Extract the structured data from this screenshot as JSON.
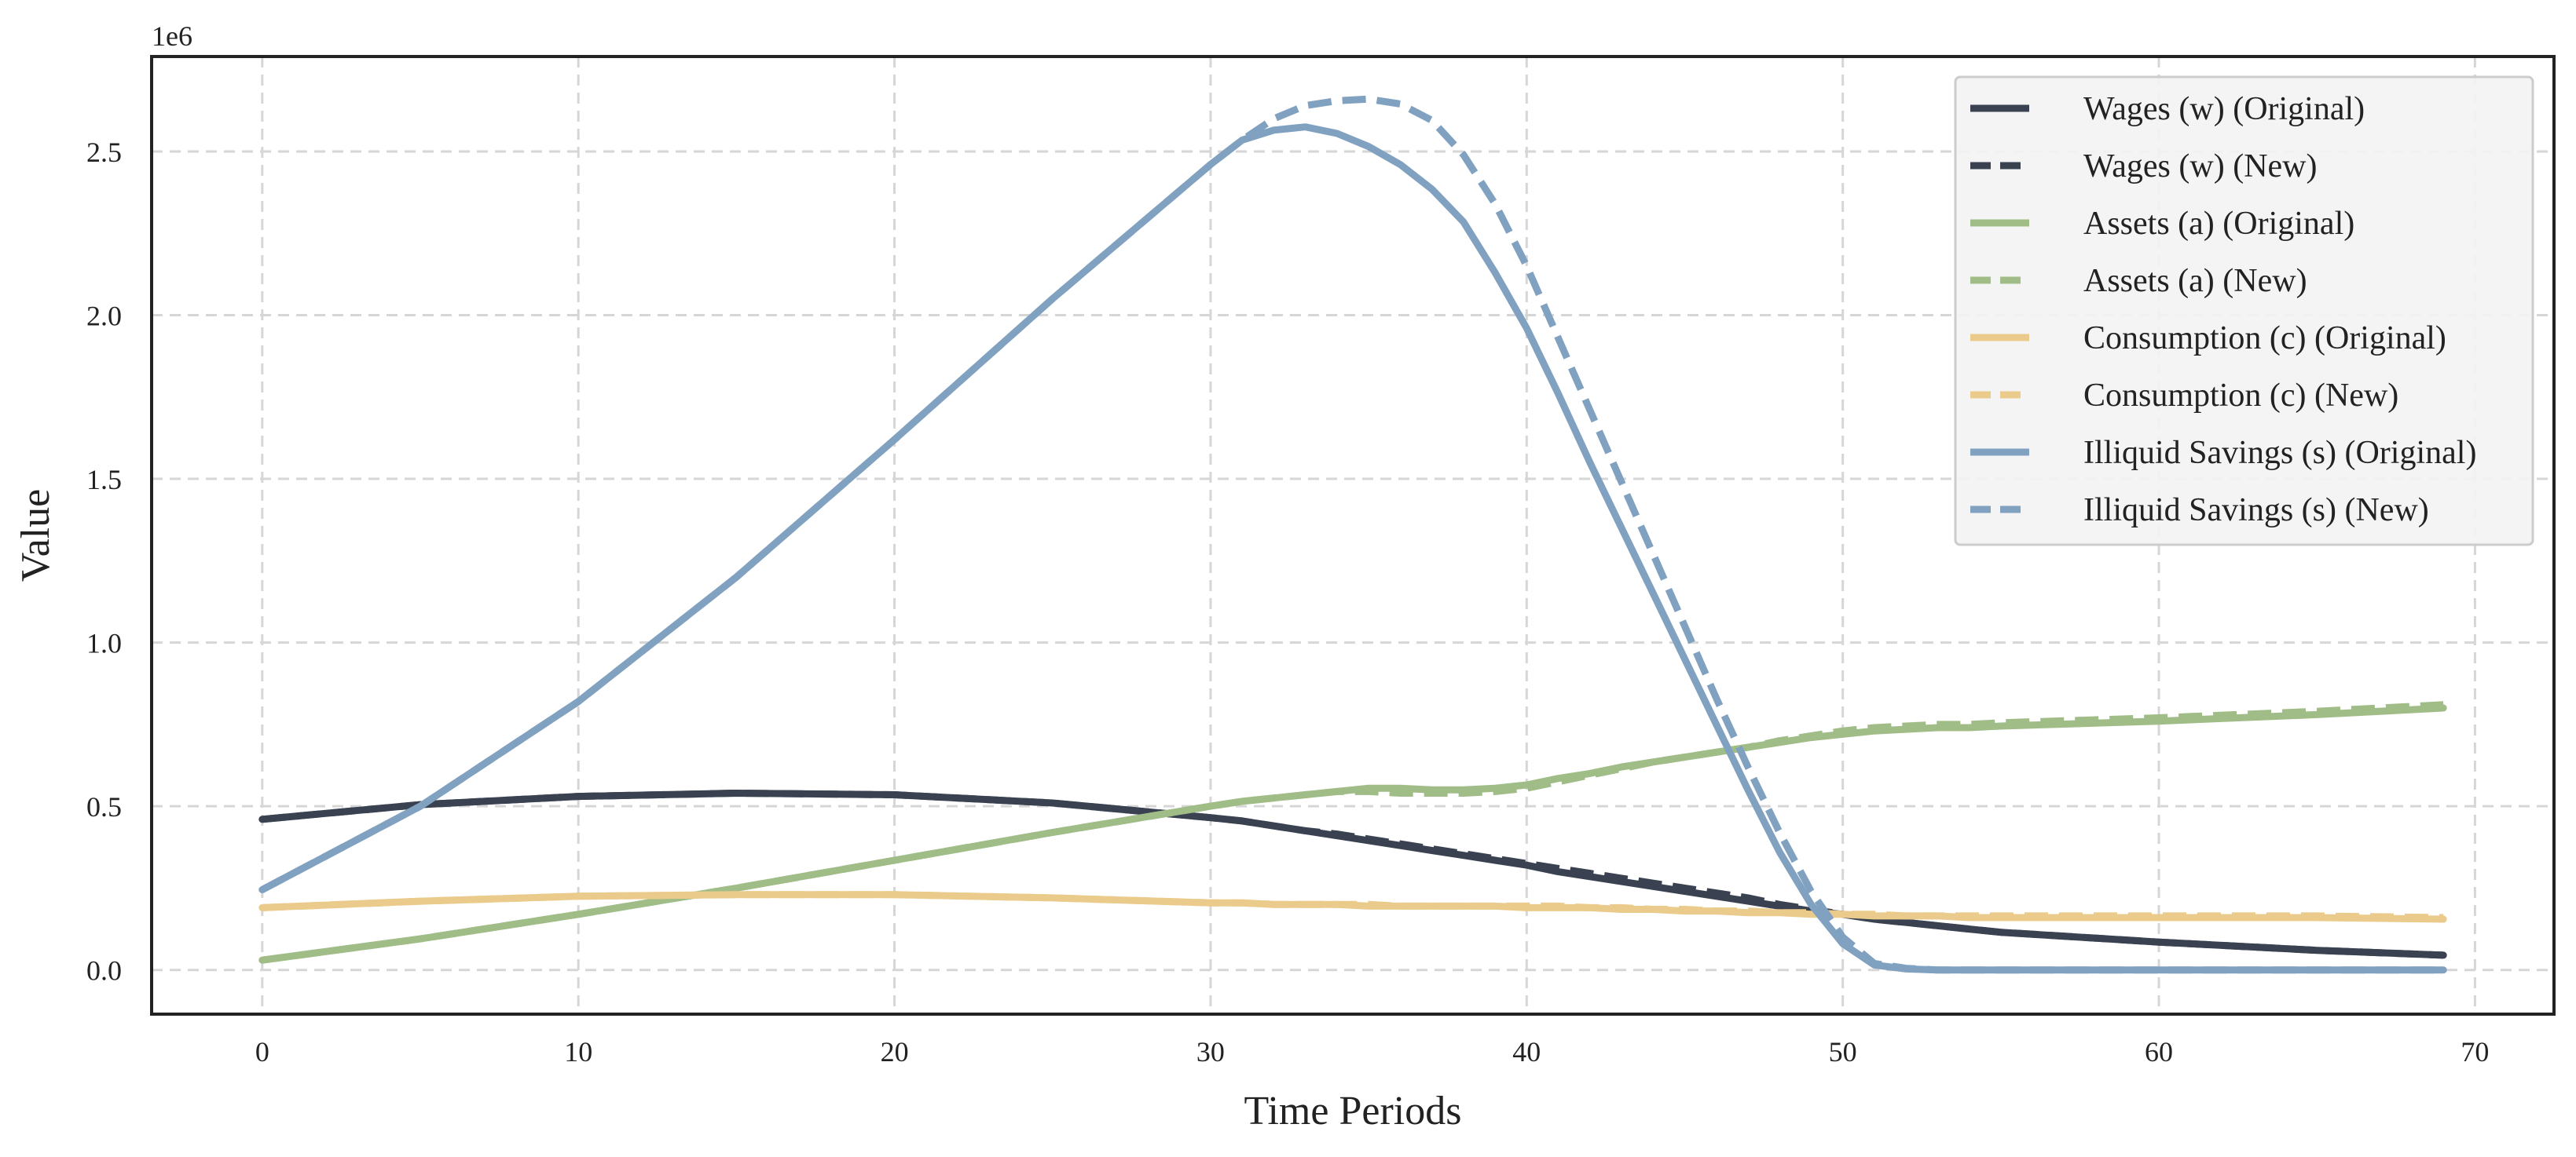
{
  "chart_data": {
    "type": "line",
    "xlabel": "Time Periods",
    "ylabel": "Value",
    "y_offset_label": "1e6",
    "xlim": [
      -3.5,
      72.5
    ],
    "ylim": [
      -0.135,
      2.79
    ],
    "xticks": [
      0,
      10,
      20,
      30,
      40,
      50,
      60,
      70
    ],
    "xtick_labels": [
      "0",
      "10",
      "20",
      "30",
      "40",
      "50",
      "60",
      "70"
    ],
    "yticks": [
      0.0,
      0.5,
      1.0,
      1.5,
      2.0,
      2.5
    ],
    "ytick_labels": [
      "0.0",
      "0.5",
      "1.0",
      "1.5",
      "2.0",
      "2.5"
    ],
    "grid": true,
    "legend_position": "top-right",
    "x": [
      0,
      5,
      10,
      15,
      20,
      25,
      30,
      31,
      32,
      33,
      34,
      35,
      36,
      37,
      38,
      39,
      40,
      41,
      42,
      43,
      44,
      45,
      46,
      47,
      48,
      49,
      50,
      51,
      52,
      53,
      54,
      55,
      60,
      65,
      69
    ],
    "series": [
      {
        "name": "Wages (w) (Original)",
        "color": "#3a4252",
        "style": "solid",
        "values": [
          0.46,
          0.505,
          0.53,
          0.54,
          0.535,
          0.51,
          0.465,
          0.455,
          0.44,
          0.425,
          0.41,
          0.395,
          0.38,
          0.365,
          0.35,
          0.335,
          0.32,
          0.3,
          0.285,
          0.27,
          0.255,
          0.24,
          0.225,
          0.21,
          0.195,
          0.18,
          0.17,
          0.155,
          0.145,
          0.135,
          0.125,
          0.115,
          0.085,
          0.06,
          0.045
        ]
      },
      {
        "name": "Wages (w) (New)",
        "color": "#3a4252",
        "style": "dashed",
        "values": [
          0.46,
          0.505,
          0.53,
          0.54,
          0.535,
          0.51,
          0.465,
          0.455,
          0.44,
          0.425,
          0.415,
          0.4,
          0.385,
          0.37,
          0.355,
          0.34,
          0.325,
          0.31,
          0.295,
          0.28,
          0.265,
          0.25,
          0.235,
          0.22,
          0.2,
          0.185,
          0.17,
          0.155,
          0.145,
          0.135,
          0.125,
          0.115,
          0.085,
          0.06,
          0.045
        ]
      },
      {
        "name": "Assets (a) (Original)",
        "color": "#a0bd88",
        "style": "solid",
        "values": [
          0.03,
          0.095,
          0.17,
          0.25,
          0.335,
          0.42,
          0.5,
          0.515,
          0.525,
          0.535,
          0.545,
          0.555,
          0.555,
          0.55,
          0.55,
          0.555,
          0.565,
          0.585,
          0.6,
          0.62,
          0.635,
          0.65,
          0.665,
          0.68,
          0.695,
          0.71,
          0.72,
          0.73,
          0.735,
          0.74,
          0.74,
          0.745,
          0.76,
          0.78,
          0.8
        ]
      },
      {
        "name": "Assets (a) (New)",
        "color": "#a0bd88",
        "style": "dashed",
        "values": [
          0.03,
          0.095,
          0.17,
          0.25,
          0.335,
          0.42,
          0.5,
          0.515,
          0.525,
          0.535,
          0.545,
          0.545,
          0.54,
          0.54,
          0.54,
          0.545,
          0.555,
          0.575,
          0.595,
          0.615,
          0.635,
          0.65,
          0.665,
          0.68,
          0.7,
          0.715,
          0.73,
          0.74,
          0.745,
          0.75,
          0.75,
          0.755,
          0.77,
          0.79,
          0.81
        ]
      },
      {
        "name": "Consumption (c) (Original)",
        "color": "#ebcb8b",
        "style": "solid",
        "values": [
          0.19,
          0.21,
          0.225,
          0.23,
          0.23,
          0.22,
          0.205,
          0.205,
          0.2,
          0.2,
          0.2,
          0.195,
          0.195,
          0.195,
          0.195,
          0.195,
          0.19,
          0.19,
          0.19,
          0.185,
          0.185,
          0.18,
          0.18,
          0.175,
          0.175,
          0.17,
          0.17,
          0.165,
          0.165,
          0.165,
          0.16,
          0.16,
          0.16,
          0.16,
          0.155
        ]
      },
      {
        "name": "Consumption (c) (New)",
        "color": "#ebcb8b",
        "style": "dashed",
        "values": [
          0.19,
          0.21,
          0.225,
          0.23,
          0.23,
          0.22,
          0.205,
          0.205,
          0.2,
          0.2,
          0.2,
          0.2,
          0.195,
          0.195,
          0.195,
          0.195,
          0.195,
          0.195,
          0.19,
          0.19,
          0.185,
          0.185,
          0.18,
          0.18,
          0.175,
          0.175,
          0.17,
          0.17,
          0.165,
          0.165,
          0.165,
          0.165,
          0.165,
          0.165,
          0.16
        ]
      },
      {
        "name": "Illiquid Savings (s) (Original)",
        "color": "#81a1c1",
        "style": "solid",
        "values": [
          0.245,
          0.5,
          0.82,
          1.2,
          1.62,
          2.05,
          2.46,
          2.535,
          2.565,
          2.575,
          2.555,
          2.515,
          2.46,
          2.385,
          2.285,
          2.13,
          1.96,
          1.76,
          1.55,
          1.35,
          1.15,
          0.95,
          0.75,
          0.55,
          0.36,
          0.2,
          0.08,
          0.015,
          0.003,
          0.0,
          0.0,
          0.0,
          0.0,
          0.0,
          0.0
        ]
      },
      {
        "name": "Illiquid Savings (s) (New)",
        "color": "#81a1c1",
        "style": "dashed",
        "values": [
          0.245,
          0.5,
          0.82,
          1.2,
          1.62,
          2.05,
          2.46,
          2.535,
          2.6,
          2.64,
          2.655,
          2.66,
          2.645,
          2.595,
          2.49,
          2.34,
          2.15,
          1.93,
          1.71,
          1.49,
          1.27,
          1.05,
          0.83,
          0.62,
          0.42,
          0.24,
          0.1,
          0.02,
          0.005,
          0.0,
          0.0,
          0.0,
          0.0,
          0.0,
          0.0
        ]
      }
    ]
  }
}
